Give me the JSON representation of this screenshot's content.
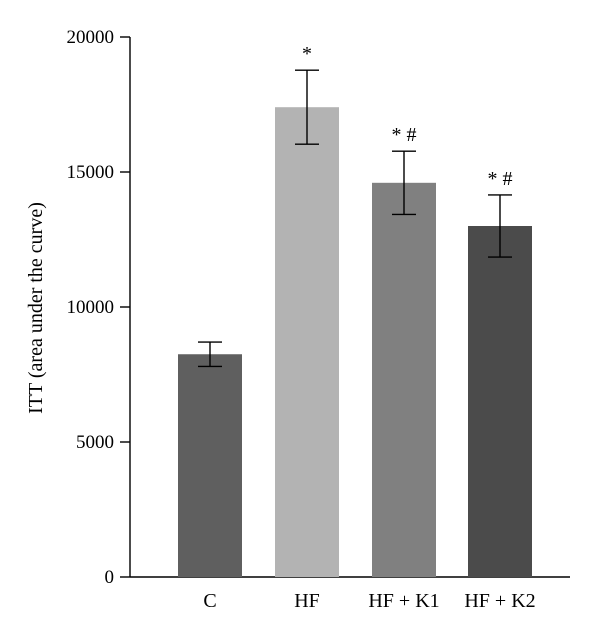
{
  "chart_data": {
    "type": "bar",
    "title": "",
    "xlabel": "",
    "ylabel": "ITT (area under the curve)",
    "ylim": [
      0,
      20000
    ],
    "yticks": [
      0,
      5000,
      10000,
      15000,
      20000
    ],
    "ytick_labels": [
      "0",
      "5000",
      "10000",
      "15000",
      "20000"
    ],
    "categories": [
      "C",
      "HF",
      "HF + K1",
      "HF + K2"
    ],
    "values": [
      8250,
      17400,
      14600,
      13000
    ],
    "errors": [
      450,
      1370,
      1170,
      1150
    ],
    "annotations": [
      "",
      "*",
      "*#",
      "*#"
    ],
    "colors": [
      "#5f5f5f",
      "#b3b3b3",
      "#808080",
      "#4b4b4b"
    ],
    "grid": false,
    "legend": "none"
  }
}
